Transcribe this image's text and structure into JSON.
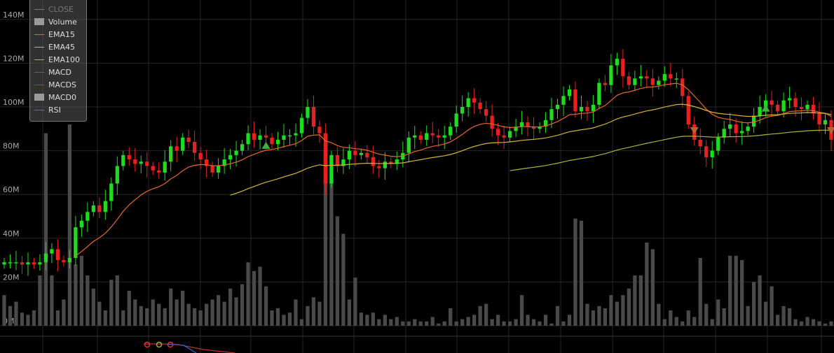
{
  "chart_data": {
    "type": "candlestick",
    "y_ticks": [
      "0M",
      "20M",
      "40M",
      "60M",
      "80M",
      "100M",
      "120M",
      "140M"
    ],
    "y_tick_values": [
      0,
      20,
      40,
      60,
      80,
      100,
      120,
      140
    ],
    "ylim": [
      0,
      148
    ],
    "grid": true,
    "legend_position": "top-left",
    "legend": [
      {
        "label": "CLOSE",
        "kind": "line",
        "color": "#777777"
      },
      {
        "label": "Volume",
        "kind": "box",
        "color": "#9a9a9a"
      },
      {
        "label": "EMA15",
        "kind": "line",
        "color": "#e8672a"
      },
      {
        "label": "EMA45",
        "kind": "line",
        "color": "#d7b237"
      },
      {
        "label": "EMA100",
        "kind": "line",
        "color": "#a6b83a"
      },
      {
        "label": "MACD",
        "kind": "line",
        "color": "#2a6ad4"
      },
      {
        "label": "MACDS",
        "kind": "line",
        "color": "#c0302a"
      },
      {
        "label": "MACD0",
        "kind": "box",
        "color": "#9a9a9a"
      },
      {
        "label": "RSI",
        "kind": "line",
        "color": "#3a7ad4"
      }
    ],
    "candles_close": [
      29,
      29,
      29,
      28,
      29,
      28,
      29,
      33,
      35,
      30,
      29,
      31,
      45,
      48,
      52,
      55,
      52,
      57,
      65,
      73,
      78,
      76,
      74,
      75,
      73,
      71,
      70,
      75,
      82,
      80,
      86,
      84,
      79,
      76,
      73,
      70,
      73,
      76,
      78,
      80,
      83,
      88,
      85,
      87,
      86,
      83,
      85,
      87,
      87,
      88,
      95,
      100,
      91,
      88,
      65,
      78,
      73,
      76,
      80,
      78,
      79,
      77,
      73,
      72,
      75,
      74,
      76,
      79,
      86,
      87,
      85,
      88,
      87,
      86,
      87,
      91,
      97,
      100,
      104,
      102,
      99,
      96,
      90,
      87,
      86,
      89,
      91,
      93,
      91,
      90,
      91,
      94,
      99,
      101,
      105,
      108,
      98,
      100,
      98,
      101,
      111,
      110,
      119,
      122,
      114,
      110,
      113,
      114,
      113,
      110,
      112,
      115,
      113,
      113,
      105,
      92,
      85,
      82,
      77,
      80,
      86,
      90,
      92,
      88,
      89,
      91,
      96,
      100,
      103,
      101,
      98,
      103,
      104,
      100,
      99,
      101,
      97,
      92,
      94,
      85
    ],
    "volume": [
      14,
      9,
      11,
      6,
      5,
      7,
      23,
      88,
      23,
      7,
      12,
      92,
      28,
      32,
      23,
      17,
      11,
      7,
      21,
      23,
      7,
      16,
      12,
      9,
      8,
      12,
      10,
      8,
      17,
      12,
      16,
      10,
      8,
      7,
      10,
      12,
      14,
      11,
      17,
      13,
      19,
      29,
      25,
      27,
      18,
      7,
      8,
      5,
      6,
      12,
      3,
      9,
      13,
      11,
      82,
      68,
      50,
      42,
      12,
      22,
      6,
      5,
      6,
      3,
      5,
      3,
      4,
      2,
      2,
      3,
      2,
      2,
      4,
      1,
      2,
      8,
      2,
      3,
      4,
      5,
      9,
      10,
      3,
      5,
      2,
      2,
      3,
      14,
      5,
      3,
      2,
      5,
      1,
      9,
      2,
      5,
      49,
      48,
      10,
      7,
      9,
      8,
      14,
      11,
      14,
      17,
      23,
      23,
      38,
      35,
      10,
      3,
      7,
      4,
      2,
      7,
      4,
      31,
      10,
      3,
      12,
      8,
      32,
      32,
      30,
      9,
      20,
      23,
      11,
      18,
      5,
      9,
      8,
      3,
      2,
      4,
      3,
      2,
      1,
      2
    ]
  }
}
